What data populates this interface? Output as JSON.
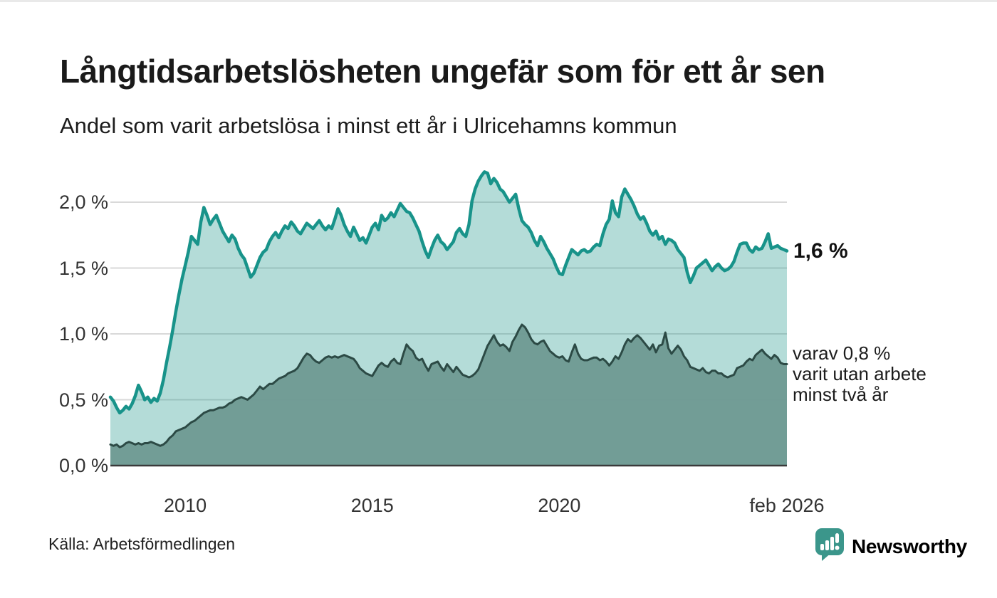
{
  "header": {
    "title": "Långtidsarbetslösheten ungefär som för ett år sen",
    "subtitle": "Andel som varit arbetslösa i minst ett år i Ulricehamns kommun"
  },
  "footer": {
    "source": "Källa: Arbetsförmedlingen",
    "brand": "Newsworthy"
  },
  "chart_data": {
    "type": "area",
    "title": "Långtidsarbetslösheten ungefär som för ett år sen",
    "subtitle": "Andel som varit arbetslösa i minst ett år i Ulricehamns kommun",
    "xlabel": "",
    "ylabel": "",
    "grid": true,
    "legend_position": "none",
    "x_start_year": 2008.0,
    "x_step_years": 0.0833,
    "ylim": [
      0.0,
      2.35
    ],
    "x_ticks": [
      {
        "label": "2010",
        "t": 2010.0
      },
      {
        "label": "2015",
        "t": 2015.0
      },
      {
        "label": "2020",
        "t": 2020.0
      },
      {
        "label": "feb 2026",
        "t": 2026.083
      }
    ],
    "y_ticks": [
      {
        "label": "2,0 %",
        "value": 2.0
      },
      {
        "label": "1,5 %",
        "value": 1.5
      },
      {
        "label": "1,0 %",
        "value": 1.0
      },
      {
        "label": "0,5 %",
        "value": 0.5
      },
      {
        "label": "0,0 %",
        "value": 0.0
      }
    ],
    "colors": {
      "line_1yr": "#18938a",
      "fill_1yr": "rgba(23,146,135,0.32)",
      "line_2yr": "#2c4a45",
      "fill_2yr": "#6f9b94",
      "grid": "#d9d9d9",
      "axis": "#3a3a3a",
      "brand": "#3b968b",
      "text": "#1a1a1a"
    },
    "annotations": {
      "last_value_label": "1,6 %",
      "secondary_lines": [
        "varav 0,8 %",
        "varit utan arbete",
        "minst två år"
      ]
    },
    "series": [
      {
        "name": "arbetslösa minst ett år",
        "values": [
          0.52,
          0.49,
          0.44,
          0.4,
          0.42,
          0.45,
          0.43,
          0.47,
          0.53,
          0.61,
          0.56,
          0.5,
          0.52,
          0.48,
          0.51,
          0.49,
          0.55,
          0.65,
          0.78,
          0.9,
          1.03,
          1.17,
          1.3,
          1.42,
          1.52,
          1.62,
          1.74,
          1.71,
          1.68,
          1.85,
          1.96,
          1.9,
          1.83,
          1.87,
          1.9,
          1.84,
          1.78,
          1.74,
          1.7,
          1.75,
          1.72,
          1.65,
          1.6,
          1.57,
          1.5,
          1.43,
          1.46,
          1.52,
          1.58,
          1.62,
          1.64,
          1.7,
          1.74,
          1.77,
          1.73,
          1.78,
          1.82,
          1.8,
          1.85,
          1.82,
          1.78,
          1.76,
          1.8,
          1.84,
          1.82,
          1.8,
          1.83,
          1.86,
          1.82,
          1.79,
          1.82,
          1.8,
          1.87,
          1.95,
          1.9,
          1.83,
          1.78,
          1.74,
          1.81,
          1.76,
          1.71,
          1.73,
          1.69,
          1.75,
          1.81,
          1.84,
          1.79,
          1.9,
          1.86,
          1.88,
          1.92,
          1.89,
          1.94,
          1.99,
          1.96,
          1.93,
          1.92,
          1.88,
          1.83,
          1.78,
          1.7,
          1.63,
          1.58,
          1.65,
          1.71,
          1.75,
          1.7,
          1.68,
          1.64,
          1.67,
          1.7,
          1.77,
          1.8,
          1.76,
          1.74,
          1.83,
          2.01,
          2.1,
          2.16,
          2.2,
          2.23,
          2.22,
          2.14,
          2.18,
          2.15,
          2.1,
          2.08,
          2.04,
          2.0,
          2.03,
          2.06,
          1.95,
          1.86,
          1.83,
          1.81,
          1.77,
          1.71,
          1.67,
          1.74,
          1.7,
          1.65,
          1.61,
          1.57,
          1.51,
          1.46,
          1.45,
          1.52,
          1.58,
          1.64,
          1.62,
          1.6,
          1.63,
          1.64,
          1.62,
          1.63,
          1.66,
          1.68,
          1.67,
          1.76,
          1.83,
          1.87,
          2.01,
          1.92,
          1.89,
          2.04,
          2.1,
          2.06,
          2.02,
          1.97,
          1.91,
          1.87,
          1.89,
          1.84,
          1.78,
          1.75,
          1.78,
          1.72,
          1.74,
          1.68,
          1.72,
          1.71,
          1.69,
          1.64,
          1.61,
          1.58,
          1.47,
          1.39,
          1.44,
          1.5,
          1.52,
          1.54,
          1.56,
          1.52,
          1.48,
          1.51,
          1.53,
          1.5,
          1.48,
          1.49,
          1.51,
          1.55,
          1.62,
          1.68,
          1.69,
          1.69,
          1.64,
          1.62,
          1.66,
          1.64,
          1.65,
          1.7,
          1.76,
          1.65,
          1.66,
          1.67,
          1.65,
          1.64,
          1.63
        ]
      },
      {
        "name": "varav utan arbete minst två år",
        "values": [
          0.16,
          0.15,
          0.16,
          0.14,
          0.15,
          0.17,
          0.18,
          0.17,
          0.16,
          0.17,
          0.16,
          0.17,
          0.17,
          0.18,
          0.17,
          0.16,
          0.15,
          0.16,
          0.18,
          0.21,
          0.23,
          0.26,
          0.27,
          0.28,
          0.29,
          0.31,
          0.33,
          0.34,
          0.36,
          0.38,
          0.4,
          0.41,
          0.42,
          0.42,
          0.43,
          0.44,
          0.44,
          0.45,
          0.47,
          0.48,
          0.5,
          0.51,
          0.52,
          0.51,
          0.5,
          0.52,
          0.54,
          0.57,
          0.6,
          0.58,
          0.6,
          0.62,
          0.62,
          0.64,
          0.66,
          0.67,
          0.68,
          0.7,
          0.71,
          0.72,
          0.74,
          0.78,
          0.82,
          0.85,
          0.84,
          0.81,
          0.79,
          0.78,
          0.8,
          0.82,
          0.83,
          0.82,
          0.83,
          0.82,
          0.83,
          0.84,
          0.83,
          0.82,
          0.81,
          0.78,
          0.74,
          0.72,
          0.7,
          0.69,
          0.68,
          0.72,
          0.76,
          0.78,
          0.76,
          0.75,
          0.79,
          0.81,
          0.78,
          0.77,
          0.85,
          0.92,
          0.89,
          0.87,
          0.82,
          0.8,
          0.81,
          0.76,
          0.72,
          0.77,
          0.78,
          0.79,
          0.75,
          0.72,
          0.77,
          0.74,
          0.71,
          0.75,
          0.72,
          0.69,
          0.68,
          0.67,
          0.68,
          0.7,
          0.73,
          0.79,
          0.85,
          0.91,
          0.95,
          0.99,
          0.94,
          0.91,
          0.92,
          0.9,
          0.87,
          0.94,
          0.98,
          1.03,
          1.07,
          1.05,
          1.01,
          0.96,
          0.93,
          0.92,
          0.94,
          0.95,
          0.91,
          0.87,
          0.85,
          0.83,
          0.82,
          0.83,
          0.8,
          0.79,
          0.86,
          0.92,
          0.85,
          0.81,
          0.8,
          0.8,
          0.81,
          0.82,
          0.82,
          0.8,
          0.81,
          0.79,
          0.76,
          0.79,
          0.83,
          0.81,
          0.86,
          0.92,
          0.96,
          0.94,
          0.97,
          0.99,
          0.97,
          0.94,
          0.91,
          0.88,
          0.92,
          0.86,
          0.91,
          0.92,
          1.01,
          0.89,
          0.85,
          0.88,
          0.91,
          0.88,
          0.83,
          0.8,
          0.75,
          0.74,
          0.73,
          0.72,
          0.74,
          0.71,
          0.7,
          0.72,
          0.72,
          0.7,
          0.7,
          0.68,
          0.67,
          0.68,
          0.69,
          0.74,
          0.75,
          0.76,
          0.79,
          0.81,
          0.8,
          0.84,
          0.86,
          0.88,
          0.85,
          0.83,
          0.81,
          0.84,
          0.82,
          0.78,
          0.77,
          0.77
        ]
      }
    ]
  }
}
